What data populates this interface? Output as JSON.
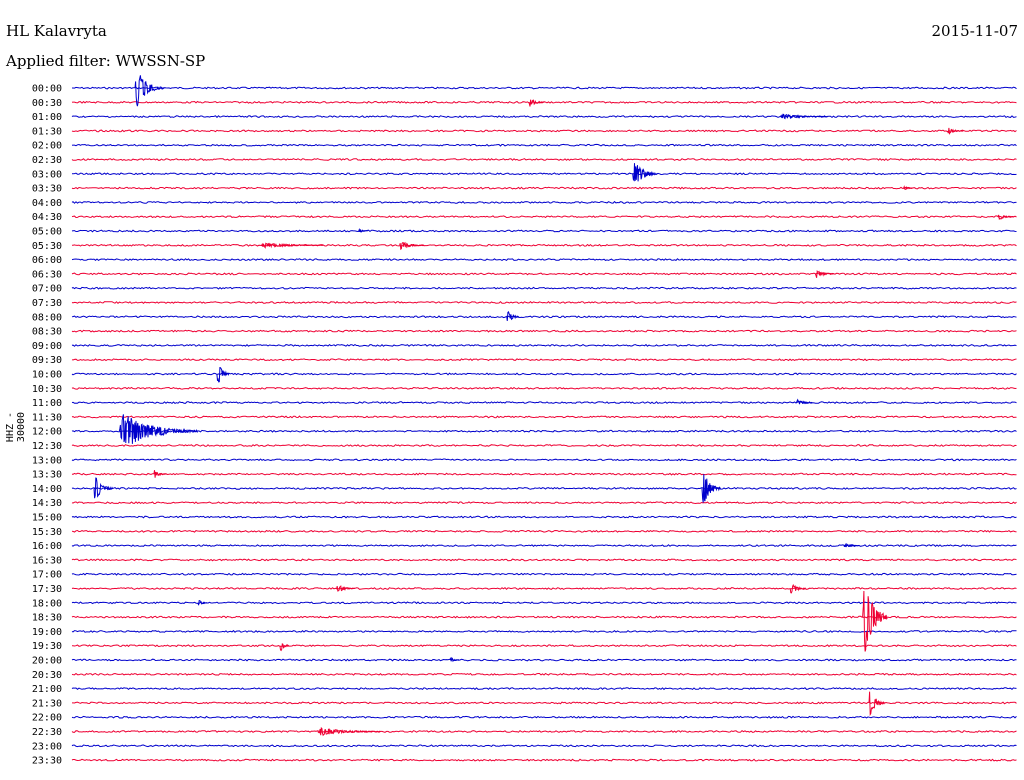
{
  "header": {
    "station": "HL Kalavryta",
    "date": "2015-11-07",
    "filter_label": "Applied filter: WWSSN-SP"
  },
  "colors": {
    "even_hour": "#0000cc",
    "half_hour": "#ee0033"
  },
  "chart_data": {
    "type": "line",
    "description_type": "helicorder",
    "ylabel": "HHZ - 30000",
    "row_labels": [
      "00:00",
      "00:30",
      "01:00",
      "01:30",
      "02:00",
      "02:30",
      "03:00",
      "03:30",
      "04:00",
      "04:30",
      "05:00",
      "05:30",
      "06:00",
      "06:30",
      "07:00",
      "07:30",
      "08:00",
      "08:30",
      "09:00",
      "09:30",
      "10:00",
      "10:30",
      "11:00",
      "11:30",
      "12:00",
      "12:30",
      "13:00",
      "13:30",
      "14:00",
      "14:30",
      "15:00",
      "15:30",
      "16:00",
      "16:30",
      "17:00",
      "17:30",
      "18:00",
      "18:30",
      "19:00",
      "19:30",
      "20:00",
      "20:30",
      "21:00",
      "21:30",
      "22:00",
      "22:30",
      "23:00",
      "23:30"
    ],
    "minutes_per_row": 30,
    "events": [
      {
        "row": 0,
        "minute": 2.0,
        "amp": 24,
        "dur": 0.9
      },
      {
        "row": 1,
        "minute": 14.5,
        "amp": 6,
        "dur": 0.5
      },
      {
        "row": 2,
        "minute": 22.5,
        "amp": 3,
        "dur": 1.5
      },
      {
        "row": 3,
        "minute": 27.8,
        "amp": 4,
        "dur": 0.5
      },
      {
        "row": 6,
        "minute": 17.8,
        "amp": 16,
        "dur": 0.8
      },
      {
        "row": 7,
        "minute": 26.4,
        "amp": 3,
        "dur": 0.3
      },
      {
        "row": 9,
        "minute": 29.4,
        "amp": 4,
        "dur": 0.5
      },
      {
        "row": 10,
        "minute": 9.1,
        "amp": 3,
        "dur": 0.3
      },
      {
        "row": 11,
        "minute": 6.0,
        "amp": 3,
        "dur": 2.0
      },
      {
        "row": 11,
        "minute": 10.4,
        "amp": 5,
        "dur": 0.8
      },
      {
        "row": 13,
        "minute": 23.6,
        "amp": 5,
        "dur": 0.6
      },
      {
        "row": 16,
        "minute": 13.8,
        "amp": 9,
        "dur": 0.4
      },
      {
        "row": 20,
        "minute": 4.6,
        "amp": 16,
        "dur": 0.4
      },
      {
        "row": 22,
        "minute": 23.0,
        "amp": 4,
        "dur": 0.5
      },
      {
        "row": 24,
        "minute": 1.5,
        "amp": 22,
        "dur": 2.5
      },
      {
        "row": 27,
        "minute": 2.6,
        "amp": 5,
        "dur": 0.4
      },
      {
        "row": 28,
        "minute": 0.7,
        "amp": 18,
        "dur": 0.6
      },
      {
        "row": 28,
        "minute": 20.0,
        "amp": 22,
        "dur": 0.6
      },
      {
        "row": 32,
        "minute": 24.5,
        "amp": 3,
        "dur": 0.5
      },
      {
        "row": 35,
        "minute": 8.4,
        "amp": 5,
        "dur": 0.6
      },
      {
        "row": 35,
        "minute": 22.8,
        "amp": 7,
        "dur": 0.5
      },
      {
        "row": 36,
        "minute": 4.0,
        "amp": 4,
        "dur": 0.3
      },
      {
        "row": 37,
        "minute": 25.1,
        "amp": 48,
        "dur": 0.8
      },
      {
        "row": 39,
        "minute": 6.6,
        "amp": 8,
        "dur": 0.3
      },
      {
        "row": 40,
        "minute": 12.0,
        "amp": 4,
        "dur": 0.3
      },
      {
        "row": 43,
        "minute": 25.3,
        "amp": 18,
        "dur": 0.5
      },
      {
        "row": 45,
        "minute": 7.8,
        "amp": 5,
        "dur": 2.0
      }
    ]
  }
}
